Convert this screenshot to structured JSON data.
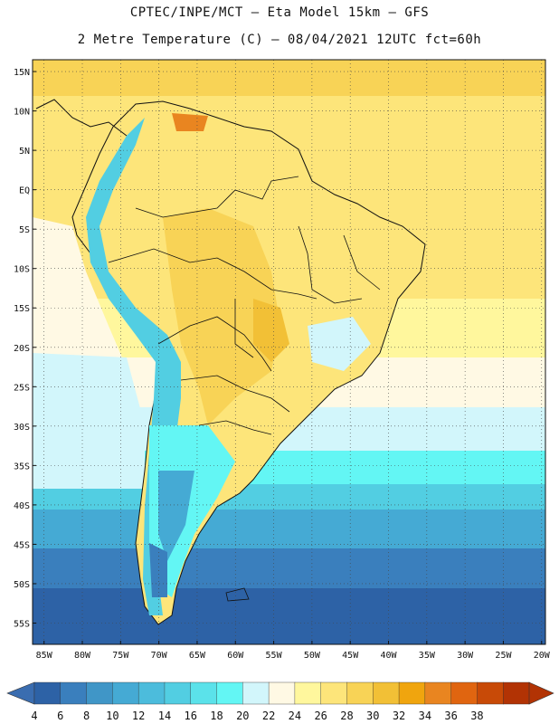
{
  "header": {
    "line1": "CPTEC/INPE/MCT –  Eta Model 15km – GFS",
    "line2": "2 Metre Temperature (C) – 08/04/2021 12UTC fct=60h"
  },
  "map": {
    "lat_labels": [
      "15N",
      "10N",
      "5N",
      "EQ",
      "5S",
      "10S",
      "15S",
      "20S",
      "25S",
      "30S",
      "35S",
      "40S",
      "45S",
      "50S",
      "55S"
    ],
    "lon_labels": [
      "85W",
      "80W",
      "75W",
      "70W",
      "65W",
      "60W",
      "55W",
      "50W",
      "45W",
      "40W",
      "35W",
      "30W",
      "25W",
      "20W"
    ],
    "lat_values": [
      15,
      10,
      5,
      0,
      -5,
      -10,
      -15,
      -20,
      -25,
      -30,
      -35,
      -40,
      -45,
      -50,
      -55
    ],
    "lon_values": [
      -85,
      -80,
      -75,
      -70,
      -65,
      -60,
      -55,
      -50,
      -45,
      -40,
      -35,
      -30,
      -25,
      -20
    ]
  },
  "colorbar": {
    "labels": [
      "4",
      "6",
      "8",
      "10",
      "12",
      "14",
      "16",
      "18",
      "20",
      "22",
      "24",
      "26",
      "28",
      "30",
      "32",
      "34",
      "36",
      "38"
    ],
    "colors": [
      "#2d62a6",
      "#3a7fbd",
      "#4096c7",
      "#45aad4",
      "#4cbcdc",
      "#52cee2",
      "#5be2ea",
      "#63f6f4",
      "#d2f6fb",
      "#fff9e4",
      "#fff79d",
      "#fde57a",
      "#f8d356",
      "#f2c036",
      "#f0a50e",
      "#e98520",
      "#e06510",
      "#c84a07",
      "#b23304"
    ],
    "low_arrow_color": "#3a6db0",
    "high_arrow_color": "#b23304"
  }
}
